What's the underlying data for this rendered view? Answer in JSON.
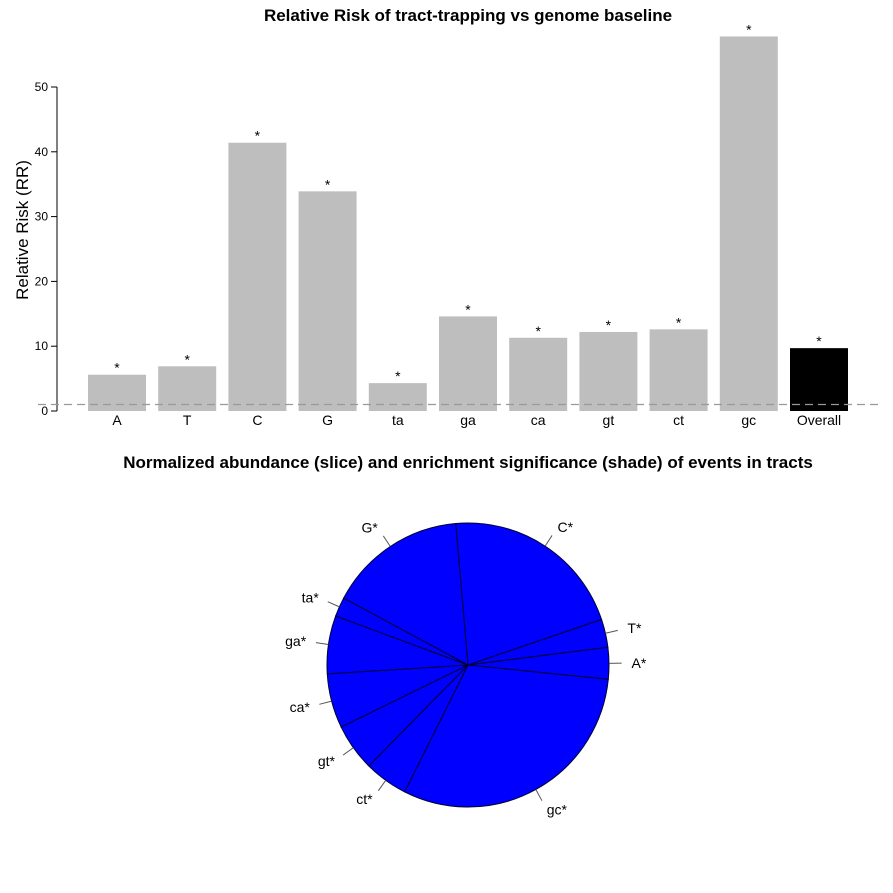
{
  "chart_data": [
    {
      "type": "bar",
      "title": "Relative Risk of tract-trapping vs genome baseline",
      "xlabel": "",
      "ylabel": "Relative Risk (RR)",
      "ylim": [
        0,
        55
      ],
      "yticks": [
        0,
        10,
        20,
        30,
        40,
        50
      ],
      "baseline": 1,
      "grid": false,
      "categories": [
        "A",
        "T",
        "C",
        "G",
        "ta",
        "ga",
        "ca",
        "gt",
        "ct",
        "gc",
        "Overall"
      ],
      "values": [
        5.6,
        6.9,
        41.4,
        33.9,
        4.3,
        14.6,
        11.3,
        12.2,
        12.6,
        57.8,
        9.7
      ],
      "annotations": [
        "*",
        "*",
        "*",
        "*",
        "*",
        "*",
        "*",
        "*",
        "*",
        "*",
        "*"
      ],
      "colors": {
        "bar": "#bebebe",
        "overall": "#000000",
        "baseline": "#999999"
      }
    },
    {
      "type": "pie",
      "title": "Normalized abundance (slice) and enrichment significance (shade) of events in tracts",
      "labels": [
        "C*",
        "T*",
        "A*",
        "gc*",
        "ct*",
        "gt*",
        "ca*",
        "ga*",
        "ta*",
        "G*"
      ],
      "values": [
        21.2,
        3.2,
        3.6,
        30.8,
        5.0,
        5.4,
        6.2,
        6.6,
        2.2,
        15.8
      ],
      "colors": {
        "fill": "#0000ff",
        "edge": "#000033"
      }
    }
  ]
}
